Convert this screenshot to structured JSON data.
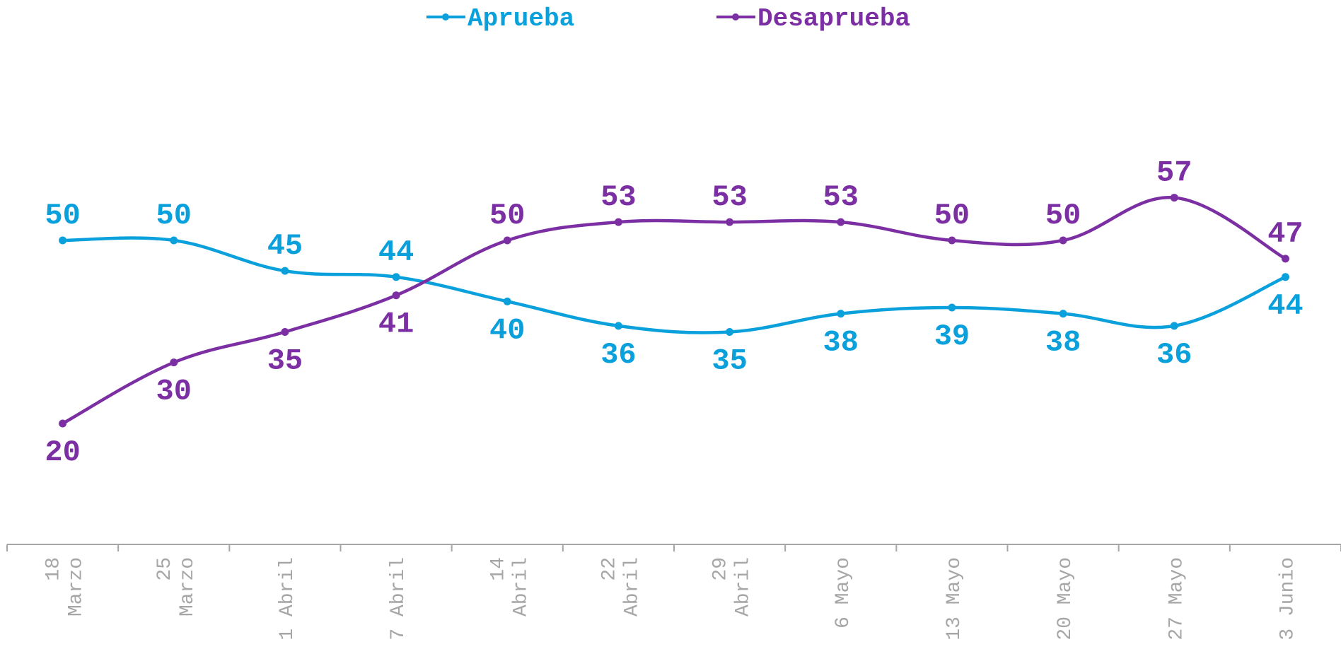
{
  "chart_data": {
    "type": "line",
    "categories": [
      [
        "18",
        "Marzo"
      ],
      [
        "25",
        "Marzo"
      ],
      [
        "1 Abril"
      ],
      [
        "7 Abril"
      ],
      [
        "14",
        "Abril"
      ],
      [
        "22",
        "Abril"
      ],
      [
        "29",
        "Abril"
      ],
      [
        "6 Mayo"
      ],
      [
        "13 Mayo"
      ],
      [
        "20 Mayo"
      ],
      [
        "27 Mayo"
      ],
      [
        "3 Junio"
      ]
    ],
    "series": [
      {
        "name": "Aprueba",
        "color": "#0aa0dc",
        "values": [
          50,
          50,
          45,
          44,
          40,
          36,
          35,
          38,
          39,
          38,
          36,
          44
        ],
        "label_positions": [
          "above",
          "above",
          "above",
          "above",
          "below",
          "below",
          "below",
          "below",
          "below",
          "below",
          "below",
          "below"
        ]
      },
      {
        "name": "Desaprueba",
        "color": "#7b2fa3",
        "values": [
          20,
          30,
          35,
          41,
          50,
          53,
          53,
          53,
          50,
          50,
          57,
          47
        ],
        "label_positions": [
          "below",
          "below",
          "below",
          "below",
          "above",
          "above",
          "above",
          "above",
          "above",
          "above",
          "above",
          "above"
        ]
      }
    ],
    "ylim": [
      0,
      100
    ],
    "grid": false,
    "legend": "top-center",
    "axis_color": "#a6a6a6"
  }
}
